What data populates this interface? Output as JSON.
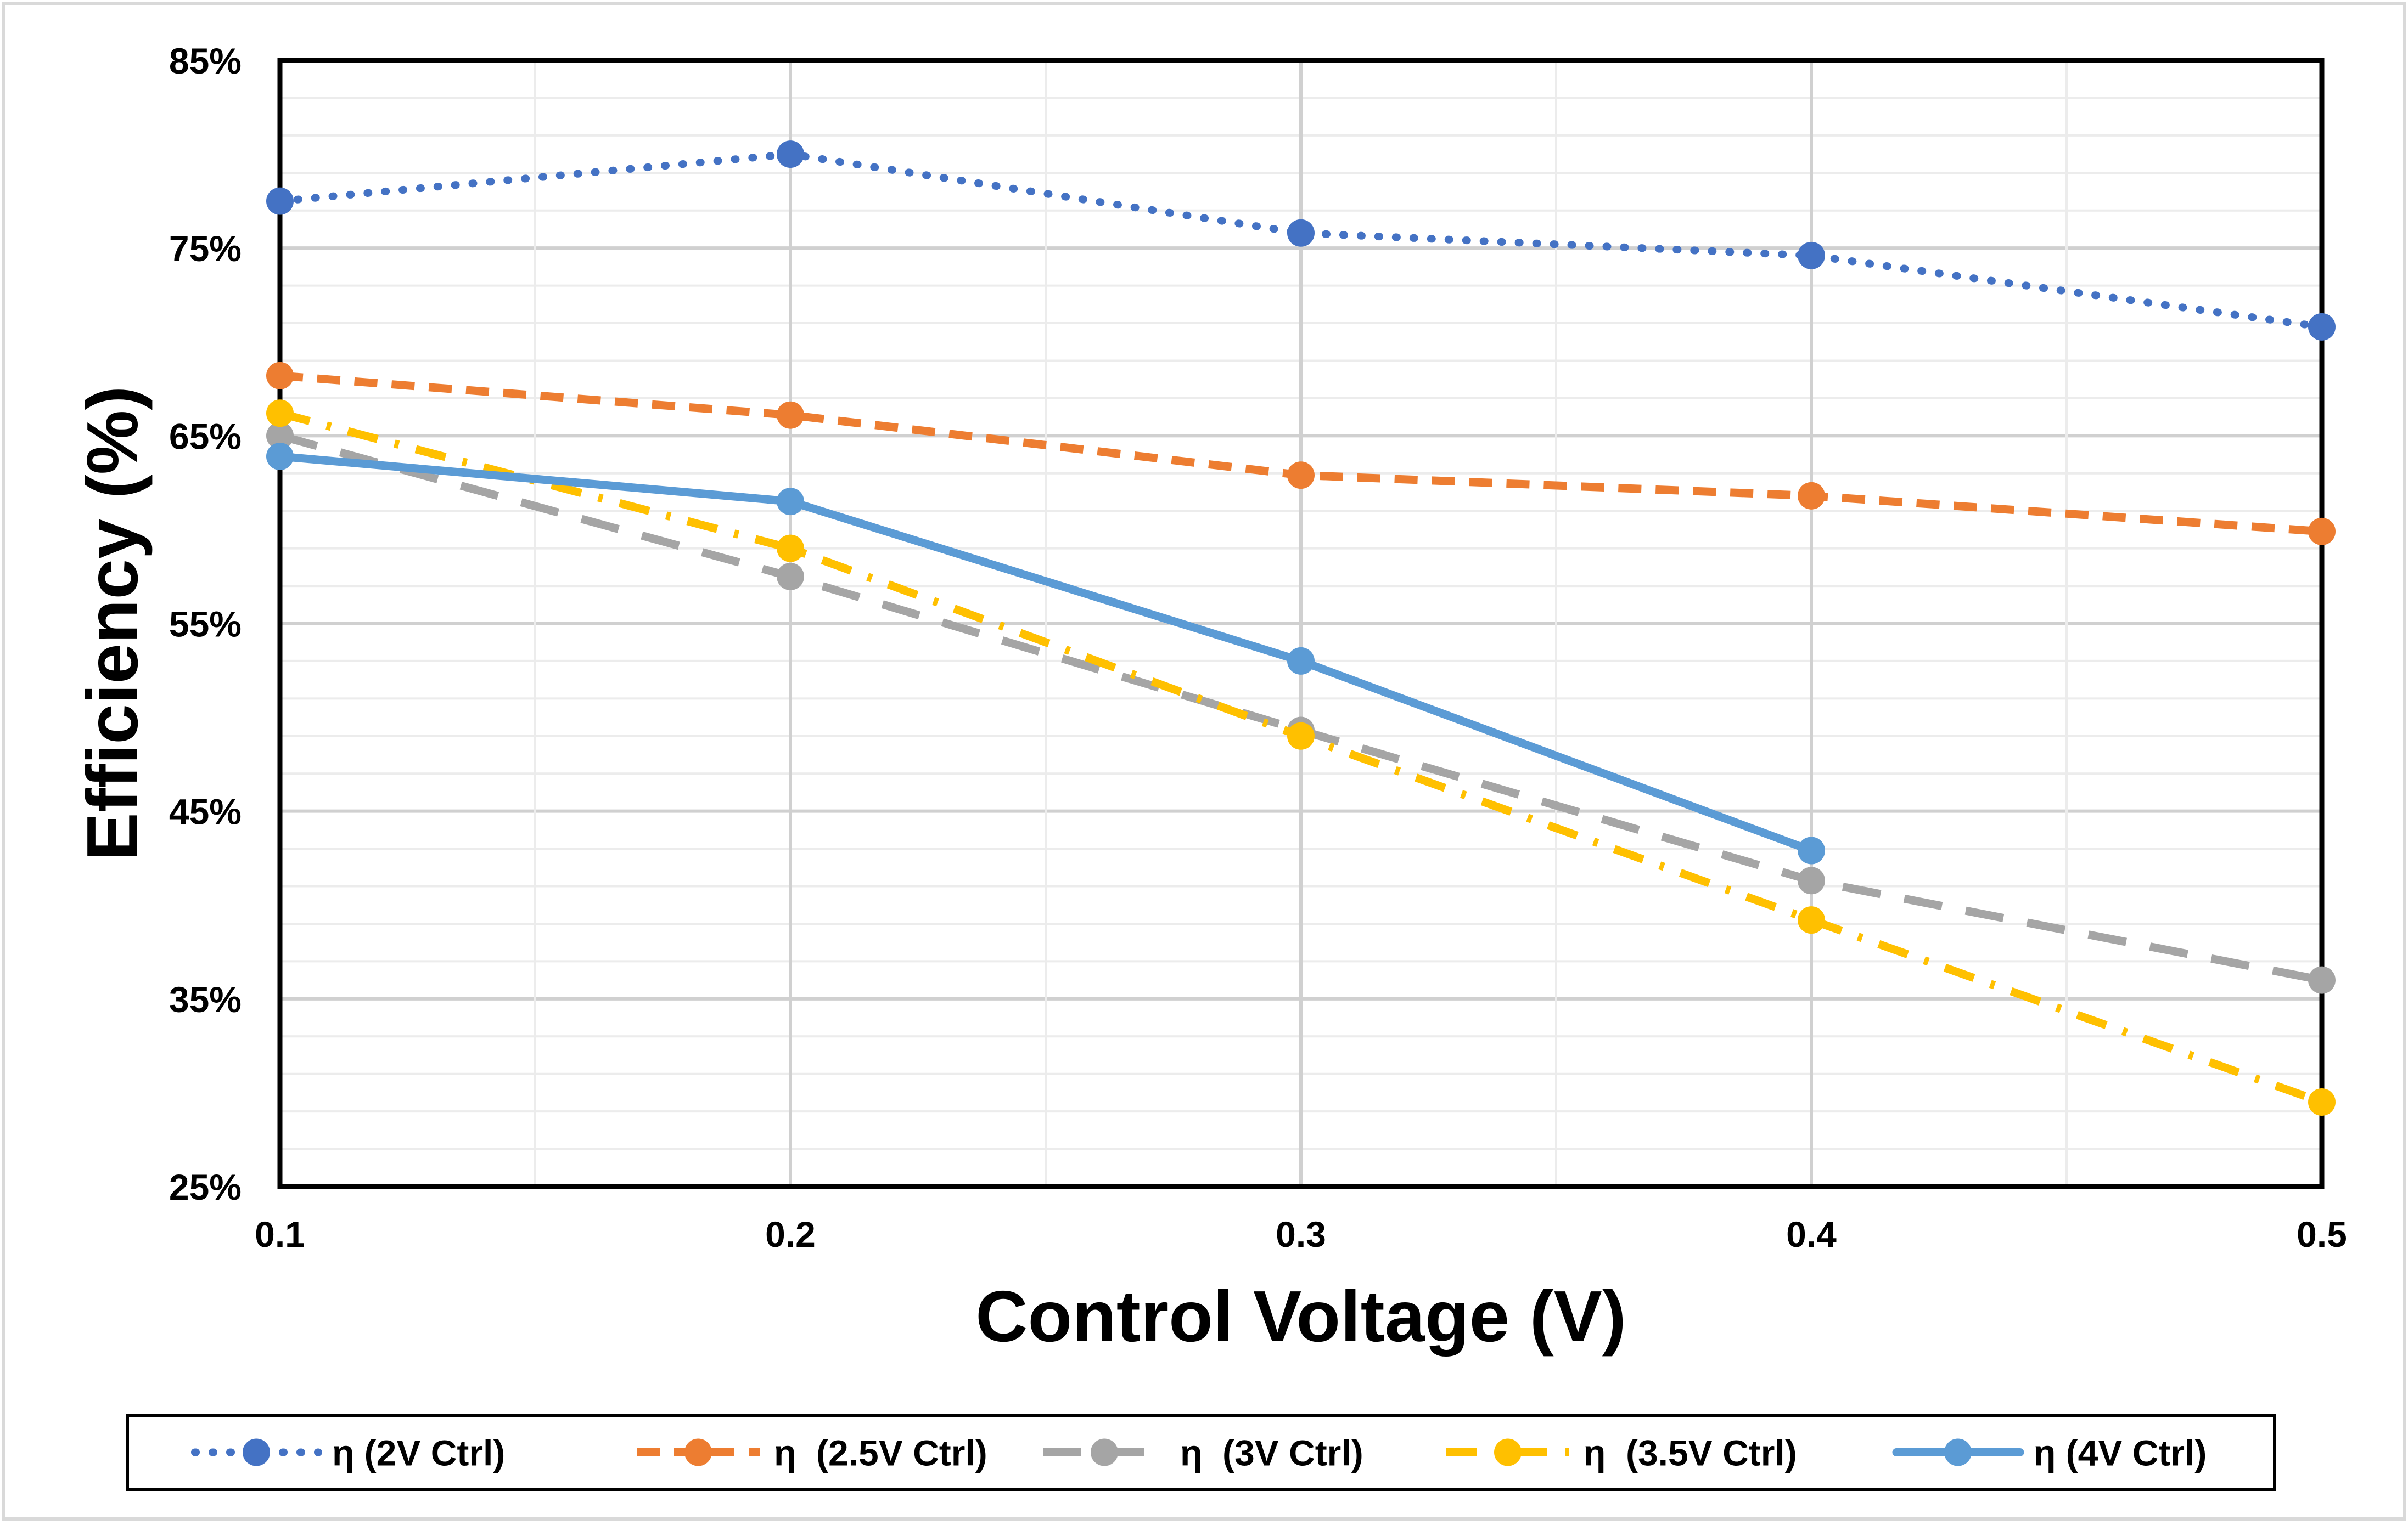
{
  "chart_data": {
    "type": "line",
    "title": "",
    "xlabel": "Control Voltage (V)",
    "ylabel": "Efficiency (%)",
    "x": [
      0.1,
      0.2,
      0.3,
      0.4,
      0.5
    ],
    "x_tick_labels": [
      "0.1",
      "0.2",
      "0.3",
      "0.4",
      "0.5"
    ],
    "xlim": [
      0.1,
      0.5
    ],
    "ylim": [
      25,
      85
    ],
    "y_ticks": [
      25,
      35,
      45,
      55,
      65,
      75,
      85
    ],
    "y_tick_labels": [
      "25%",
      "35%",
      "45%",
      "55%",
      "65%",
      "75%",
      "85%"
    ],
    "grid": true,
    "legend_position": "bottom",
    "series": [
      {
        "name": "η (2V Ctrl)",
        "color": "#4472C4",
        "line_style": "dotted",
        "values": [
          77.5,
          80,
          75.8,
          74.6,
          70.8
        ]
      },
      {
        "name": "η  (2.5V Ctrl)",
        "color": "#ED7D31",
        "line_style": "dashed",
        "values": [
          68.2,
          66.1,
          62.9,
          61.8,
          59.9
        ]
      },
      {
        "name": "η  (3V Ctrl)",
        "color": "#A5A5A5",
        "line_style": "long-dash",
        "values": [
          65,
          57.5,
          49.3,
          41.3,
          36
        ]
      },
      {
        "name": "η  (3.5V Ctrl)",
        "color": "#FFC000",
        "line_style": "dash-dot",
        "values": [
          66.2,
          59,
          49,
          39.2,
          29.5
        ]
      },
      {
        "name": "η (4V Ctrl)",
        "color": "#5B9BD5",
        "line_style": "solid",
        "values": [
          63.9,
          61.5,
          53,
          42.9,
          null
        ]
      }
    ]
  }
}
